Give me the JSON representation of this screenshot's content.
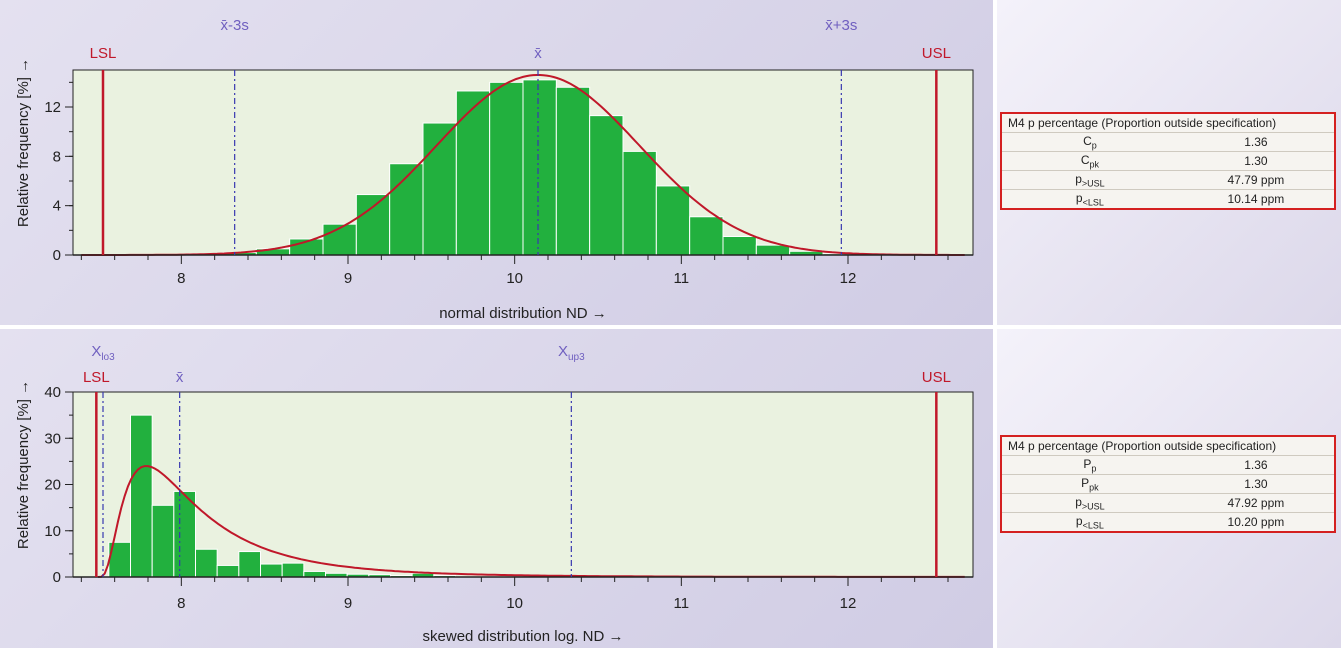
{
  "colors": {
    "bar": "#22b03e",
    "bar_stroke": "#ffffff",
    "curve": "#c0182a",
    "spec_line": "#c0182a",
    "stat_line": "#3838b0",
    "plot_bg": "#eaf2e0",
    "panel_bg": "#dad6ea",
    "spec_label": "#c0182a",
    "stat_label": "#7060c0"
  },
  "chart_data": [
    {
      "type": "bar",
      "title": "",
      "xlabel": "normal distribution  ND →",
      "ylabel": "Relative frequency  [%] →",
      "xlim": [
        7.35,
        12.75
      ],
      "ylim": [
        0,
        15
      ],
      "xticks": [
        8,
        9,
        10,
        11,
        12
      ],
      "yticks": [
        0,
        4,
        8,
        12
      ],
      "grid": false,
      "bin_width": 0.2,
      "bins": [
        {
          "x": 8.15,
          "value": 0.1
        },
        {
          "x": 8.35,
          "value": 0.2
        },
        {
          "x": 8.55,
          "value": 0.5
        },
        {
          "x": 8.75,
          "value": 1.3
        },
        {
          "x": 8.95,
          "value": 2.5
        },
        {
          "x": 9.15,
          "value": 4.9
        },
        {
          "x": 9.35,
          "value": 7.4
        },
        {
          "x": 9.55,
          "value": 10.7
        },
        {
          "x": 9.75,
          "value": 13.3
        },
        {
          "x": 9.95,
          "value": 14.0
        },
        {
          "x": 10.15,
          "value": 14.2
        },
        {
          "x": 10.35,
          "value": 13.6
        },
        {
          "x": 10.55,
          "value": 11.3
        },
        {
          "x": 10.75,
          "value": 8.4
        },
        {
          "x": 10.95,
          "value": 5.6
        },
        {
          "x": 11.15,
          "value": 3.1
        },
        {
          "x": 11.35,
          "value": 1.5
        },
        {
          "x": 11.55,
          "value": 0.8
        },
        {
          "x": 11.75,
          "value": 0.3
        },
        {
          "x": 11.95,
          "value": 0.1
        }
      ],
      "curve": {
        "kind": "normal",
        "mean": 10.14,
        "sd": 0.61,
        "peak": 14.6,
        "x_range": [
          7.4,
          12.7
        ]
      },
      "spec_lines": [
        {
          "label": "LSL",
          "x": 7.53
        },
        {
          "label": "USL",
          "x": 12.53
        }
      ],
      "stat_lines": [
        {
          "label": "x̄-3s",
          "x": 8.32,
          "label_row": "top"
        },
        {
          "label": "x̄",
          "x": 10.14,
          "label_row": "mid"
        },
        {
          "label": "x̄+3s",
          "x": 11.96,
          "label_row": "top"
        }
      ]
    },
    {
      "type": "bar",
      "title": "",
      "xlabel": "skewed distribution  log. ND →",
      "ylabel": "Relative frequency  [%] →",
      "xlim": [
        7.35,
        12.75
      ],
      "ylim": [
        0,
        40
      ],
      "xticks": [
        8,
        9,
        10,
        11,
        12
      ],
      "yticks": [
        0,
        10,
        20,
        30,
        40
      ],
      "grid": false,
      "bin_width": 0.13,
      "bins": [
        {
          "x": 7.63,
          "value": 7.5
        },
        {
          "x": 7.76,
          "value": 35.0
        },
        {
          "x": 7.89,
          "value": 15.5
        },
        {
          "x": 8.02,
          "value": 18.5
        },
        {
          "x": 8.15,
          "value": 6.0
        },
        {
          "x": 8.28,
          "value": 2.5
        },
        {
          "x": 8.41,
          "value": 5.5
        },
        {
          "x": 8.54,
          "value": 2.8
        },
        {
          "x": 8.67,
          "value": 3.0
        },
        {
          "x": 8.8,
          "value": 1.2
        },
        {
          "x": 8.93,
          "value": 0.8
        },
        {
          "x": 9.06,
          "value": 0.6
        },
        {
          "x": 9.19,
          "value": 0.5
        },
        {
          "x": 9.32,
          "value": 0.3
        },
        {
          "x": 9.45,
          "value": 0.8
        },
        {
          "x": 9.58,
          "value": 0.3
        }
      ],
      "curve": {
        "kind": "lognormal",
        "start": 7.5,
        "mode": 7.79,
        "peak": 24.0,
        "x_range": [
          7.5,
          12.7
        ]
      },
      "spec_lines": [
        {
          "label": "LSL",
          "x": 7.49
        },
        {
          "label": "USL",
          "x": 12.53
        }
      ],
      "stat_lines": [
        {
          "label": "X",
          "sub": "lo3",
          "x": 7.53,
          "label_row": "top"
        },
        {
          "label": "x̄",
          "x": 7.99,
          "label_row": "mid"
        },
        {
          "label": "X",
          "sub": "up3",
          "x": 10.34,
          "label_row": "top"
        }
      ]
    }
  ],
  "tables": [
    {
      "header": "M4  p percentage (Proportion outside specification)",
      "rows": [
        {
          "label": "C",
          "sub": "p",
          "value": "1.36"
        },
        {
          "label": "C",
          "sub": "pk",
          "value": "1.30"
        },
        {
          "label": "p",
          "sub": ">USL",
          "value": "47.79 ppm"
        },
        {
          "label": "p",
          "sub": "<LSL",
          "value": "10.14 ppm"
        }
      ]
    },
    {
      "header": "M4  p percentage (Proportion outside specification)",
      "rows": [
        {
          "label": "P",
          "sub": "p",
          "value": "1.36"
        },
        {
          "label": "P",
          "sub": "pk",
          "value": "1.30"
        },
        {
          "label": "p",
          "sub": ">USL",
          "value": "47.92 ppm"
        },
        {
          "label": "p",
          "sub": "<LSL",
          "value": "10.20 ppm"
        }
      ]
    }
  ]
}
